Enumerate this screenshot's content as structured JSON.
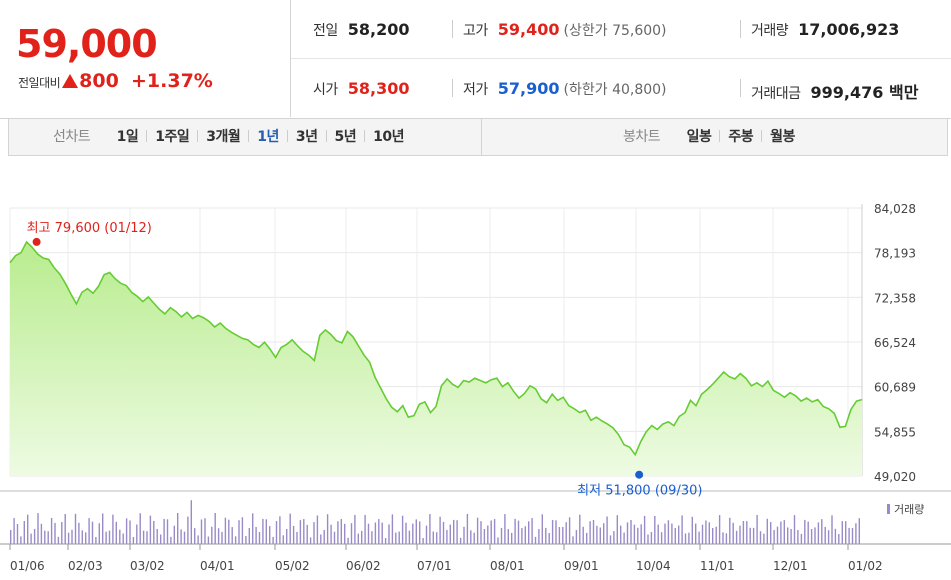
{
  "summary": {
    "price": "59,000",
    "change_label": "전일대비",
    "change_value": "800",
    "change_pct": "+1.37%",
    "prev_close_label": "전일",
    "prev_close": "58,200",
    "high_label": "고가",
    "high": "59,400",
    "upper_limit": "(상한가 75,600)",
    "volume_label": "거래량",
    "volume": "17,006,923",
    "open_label": "시가",
    "open": "58,300",
    "low_label": "저가",
    "low": "57,900",
    "lower_limit": "(하한가 40,800)",
    "amount_label": "거래대금",
    "amount": "999,476 백만"
  },
  "tabs": {
    "line_title": "선차트",
    "line_tabs": [
      "1일",
      "1주일",
      "3개월",
      "1년",
      "3년",
      "5년",
      "10년"
    ],
    "active": "1년",
    "candle_title": "봉차트",
    "candle_tabs": [
      "일봉",
      "주봉",
      "월봉"
    ]
  },
  "colors": {
    "up": "#e0221b",
    "down": "#1a5fd0",
    "line": "#66cc33",
    "volume": "#9a8ac8"
  },
  "chart_data": {
    "type": "area",
    "y_ticks": [
      "84,028",
      "78,193",
      "72,358",
      "66,524",
      "60,689",
      "54,855",
      "49,020"
    ],
    "ylim": [
      49020,
      84028
    ],
    "x_ticks": [
      "01/06",
      "02/03",
      "03/02",
      "04/01",
      "05/02",
      "06/02",
      "07/01",
      "08/01",
      "09/01",
      "10/04",
      "11/01",
      "12/01",
      "01/02"
    ],
    "high_annotation": "최고 79,600 (01/12)",
    "low_annotation": "최저 51,800 (09/30)",
    "high": {
      "date": "01/12",
      "value": 79600
    },
    "low": {
      "date": "09/30",
      "value": 51800
    },
    "volume_legend": "거래량",
    "grid": true,
    "series": [
      {
        "values": [
          76900,
          77800,
          78200,
          79600,
          78900,
          78000,
          77500,
          77300,
          76200,
          75400,
          74200,
          72800,
          71500,
          73000,
          73500,
          72900,
          73800,
          75300,
          75600,
          74800,
          74200,
          73900,
          73000,
          72500,
          71800,
          72400,
          71600,
          70800,
          70200,
          71000,
          70500,
          69800,
          70400,
          69600,
          70000,
          69700,
          69200,
          68500,
          69000,
          68300,
          67800,
          67400,
          67000,
          66800,
          66200,
          65800,
          66500,
          65600,
          64500,
          65800,
          66200,
          66800,
          66000,
          65300,
          64800,
          64100,
          67400,
          68100,
          67500,
          66700,
          66400,
          67900,
          67200,
          66000,
          64800,
          63900,
          61900,
          60500,
          59100,
          58000,
          57400,
          58200,
          56700,
          56900,
          58400,
          58700,
          57300,
          58100,
          60800,
          61700,
          61000,
          60600,
          61500,
          61300,
          61800,
          61500,
          61200,
          61600,
          61800,
          60700,
          61200,
          60100,
          59200,
          59800,
          60800,
          60400,
          59100,
          58600,
          59700,
          58900,
          59300,
          58200,
          57800,
          57300,
          57600,
          56300,
          56700,
          56200,
          55800,
          55300,
          54400,
          53100,
          52800,
          51800,
          53500,
          54800,
          55600,
          55100,
          55800,
          56100,
          55600,
          56800,
          57300,
          58900,
          58200,
          59700,
          60300,
          61000,
          61800,
          62600,
          62000,
          61700,
          62400,
          61800,
          60800,
          61200,
          60700,
          61400,
          60200,
          59800,
          59300,
          59900,
          59500,
          58800,
          59200,
          58700,
          59000,
          58100,
          57800,
          57200,
          55400,
          55500,
          57700,
          58800,
          59000
        ]
      }
    ]
  }
}
